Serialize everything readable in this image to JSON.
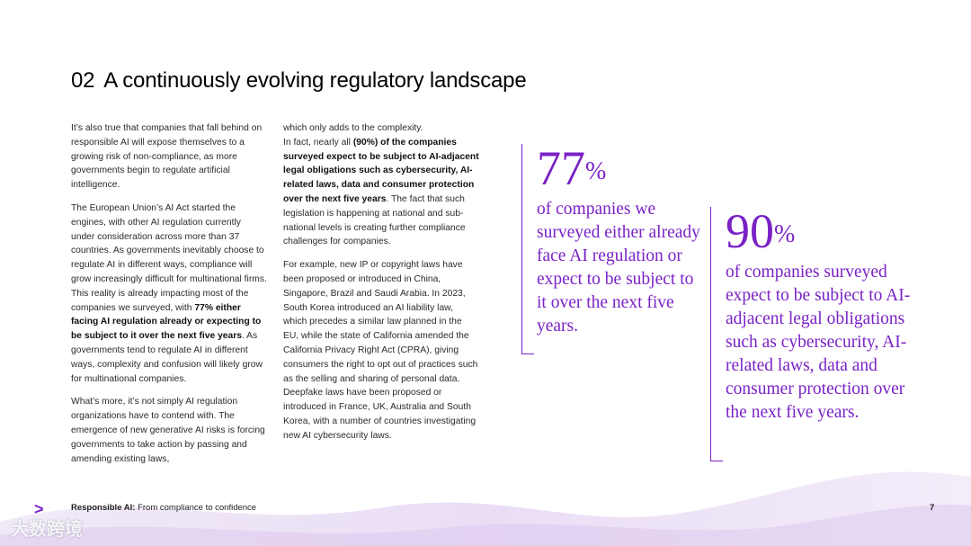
{
  "title": {
    "number": "02",
    "text": "A continuously evolving regulatory landscape"
  },
  "col1": {
    "p1": "It’s also true that companies that fall behind on responsible AI will expose themselves to a growing risk of non-compliance, as more governments begin to regulate artificial intelligence.",
    "p2_a": "The European Union’s AI Act started the engines, with other AI regulation currently under consideration across more than 37 countries. As governments inevitably choose to regulate AI in different ways, compliance will grow increasingly difficult for multinational firms. This reality is already impacting most of the companies we surveyed, with ",
    "p2_bold": "77% either facing AI regulation already or expecting to be subject to it over the next five years",
    "p2_b": ". As governments tend to regulate AI in different ways, complexity and confusion will likely grow for multinational companies.",
    "p3": "What’s more, it’s not simply AI regulation organizations have to contend with. The emergence of new generative AI risks is forcing governments to take action by passing and amending existing laws,"
  },
  "col2": {
    "p1": "which only adds to the complexity.",
    "p2_a": "In fact, nearly all ",
    "p2_bold": "(90%) of the companies surveyed expect to be subject to AI-adjacent legal obligations such as cybersecurity, AI-related laws, data and consumer protection over the next five years",
    "p2_b": ". The fact that such legislation is happening at national and sub-national levels is creating further compliance challenges for companies.",
    "p3": "For example, new IP or copyright laws have been proposed or introduced in China, Singapore, Brazil and Saudi Arabia. In 2023, South Korea introduced an AI liability law, which precedes a similar law planned in the EU, while the state of California amended the California Privacy Right Act (CPRA), giving consumers the right to opt out of practices such as the selling and sharing of personal data. Deepfake laws have been proposed or introduced in France, UK, Australia and South Korea, with a number of countries investigating new AI cybersecurity laws."
  },
  "stats": [
    {
      "value": "77",
      "unit": "%",
      "text": "of companies we surveyed either already face AI regulation or expect to be subject to it over the next five years."
    },
    {
      "value": "90",
      "unit": "%",
      "text": "of companies surveyed expect to be subject to AI-adjacent legal obligations such as cybersecurity, AI-related laws, data and consumer protection over the next five years."
    }
  ],
  "footer": {
    "brand_glyph": ">",
    "bold": "Responsible AI:",
    "text": " From compliance to confidence",
    "page": "7"
  },
  "watermark": "大数跨境",
  "colors": {
    "accent": "#7a22c6"
  }
}
